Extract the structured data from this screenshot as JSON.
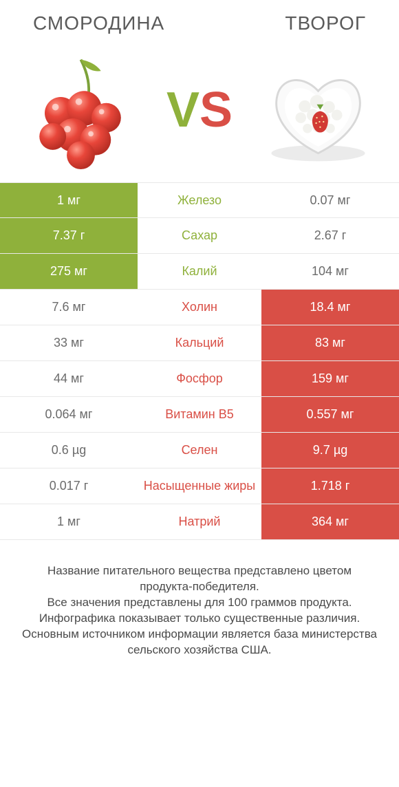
{
  "colors": {
    "left_win": "#8fb13b",
    "right_win": "#d94f46",
    "mid_left": "#8fb13b",
    "mid_right": "#d94f46",
    "nowin_text": "#6b6b6b",
    "title_text": "#5a5a5a",
    "border": "#e8e8e8",
    "bg": "#ffffff"
  },
  "header": {
    "left_title": "СМОРОДИНА",
    "right_title": "ТВОРОГ",
    "vs_v": "V",
    "vs_s": "S"
  },
  "rows": [
    {
      "nutrient": "Железо",
      "left": "1 мг",
      "right": "0.07 мг",
      "winner": "left"
    },
    {
      "nutrient": "Сахар",
      "left": "7.37 г",
      "right": "2.67 г",
      "winner": "left"
    },
    {
      "nutrient": "Калий",
      "left": "275 мг",
      "right": "104 мг",
      "winner": "left"
    },
    {
      "nutrient": "Холин",
      "left": "7.6 мг",
      "right": "18.4 мг",
      "winner": "right"
    },
    {
      "nutrient": "Кальций",
      "left": "33 мг",
      "right": "83 мг",
      "winner": "right"
    },
    {
      "nutrient": "Фосфор",
      "left": "44 мг",
      "right": "159 мг",
      "winner": "right"
    },
    {
      "nutrient": "Витамин B5",
      "left": "0.064 мг",
      "right": "0.557 мг",
      "winner": "right"
    },
    {
      "nutrient": "Селен",
      "left": "0.6 µg",
      "right": "9.7 µg",
      "winner": "right"
    },
    {
      "nutrient": "Насыщенные жиры",
      "left": "0.017 г",
      "right": "1.718 г",
      "winner": "right"
    },
    {
      "nutrient": "Натрий",
      "left": "1 мг",
      "right": "364 мг",
      "winner": "right"
    }
  ],
  "footnote": "Название питательного вещества представлено цветом продукта-победителя.\nВсе значения представлены для 100 граммов продукта.\nИнфографика показывает только существенные различия.\nОсновным источником информации является база министерства сельского хозяйства США."
}
